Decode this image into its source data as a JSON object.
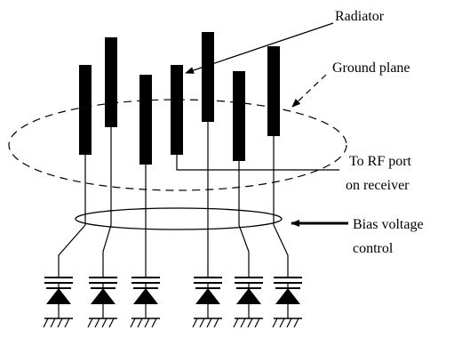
{
  "labels": {
    "radiator": "Radiator",
    "ground_plane": "Ground plane",
    "rf_port_line1": "To RF port",
    "rf_port_line2": "on receiver",
    "bias_line1": "Bias voltage",
    "bias_line2": "control"
  },
  "components": {
    "radiator_count": 7,
    "diode_count": 6
  },
  "colors": {
    "ink": "#000000",
    "background": "#ffffff"
  }
}
